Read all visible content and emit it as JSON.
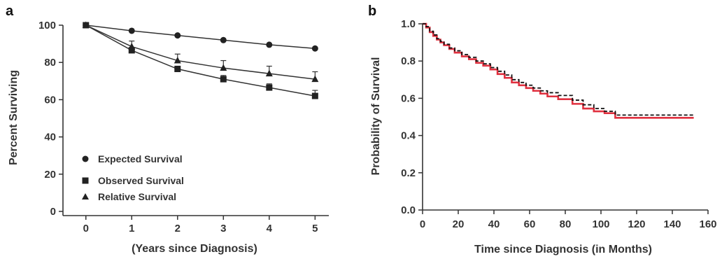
{
  "chart_data": [
    {
      "panel_label": "a",
      "type": "line",
      "xlabel": "(Years since Diagnosis)",
      "ylabel": "Percent Surviving",
      "x": [
        0,
        1,
        2,
        3,
        4,
        5
      ],
      "xlim": [
        -0.5,
        5.3
      ],
      "ylim": [
        0,
        100
      ],
      "xticks": [
        0,
        1,
        2,
        3,
        4,
        5
      ],
      "yticks": [
        0,
        20,
        40,
        60,
        80,
        100
      ],
      "grid": false,
      "legend_position": "bottom-left",
      "series": [
        {
          "name": "Expected Survival",
          "marker": "circle",
          "values": [
            100,
            97,
            94.5,
            92,
            89.5,
            87.5
          ],
          "err": [
            0,
            0,
            0,
            0,
            0,
            0
          ]
        },
        {
          "name": "Observed Survival",
          "marker": "square",
          "values": [
            100,
            86.5,
            76.5,
            71,
            66.5,
            62
          ],
          "err": [
            0,
            1.5,
            1.5,
            2,
            2,
            3
          ]
        },
        {
          "name": "Relative Survival",
          "marker": "triangle",
          "values": [
            100,
            88.5,
            81,
            77,
            74,
            71
          ],
          "err": [
            0,
            3,
            3.5,
            4,
            4,
            4
          ]
        }
      ],
      "colors": {
        "line": "#333333"
      }
    },
    {
      "panel_label": "b",
      "type": "line",
      "xlabel": "Time since Diagnosis (in Months)",
      "ylabel": "Probability of Survival",
      "xlim": [
        0,
        160
      ],
      "ylim": [
        0,
        1
      ],
      "xticks": [
        0,
        20,
        40,
        60,
        80,
        100,
        120,
        140,
        160
      ],
      "yticks": [
        "0.0",
        "0.2",
        "0.4",
        "0.6",
        "0.8",
        "1.0"
      ],
      "grid": false,
      "series": [
        {
          "style": "step",
          "color": "#e0303f",
          "x": [
            0,
            2,
            4,
            6,
            8,
            10,
            12,
            15,
            18,
            22,
            26,
            30,
            34,
            38,
            42,
            46,
            50,
            54,
            58,
            62,
            66,
            70,
            76,
            84,
            90,
            96,
            102,
            108,
            152
          ],
          "values": [
            1.0,
            0.98,
            0.955,
            0.935,
            0.915,
            0.9,
            0.885,
            0.865,
            0.845,
            0.825,
            0.81,
            0.79,
            0.775,
            0.755,
            0.73,
            0.71,
            0.685,
            0.67,
            0.655,
            0.64,
            0.625,
            0.61,
            0.595,
            0.57,
            0.545,
            0.53,
            0.52,
            0.495,
            0.495
          ]
        },
        {
          "style": "dashed-step",
          "color": "#111111",
          "x": [
            0,
            2,
            4,
            6,
            8,
            10,
            12,
            15,
            18,
            22,
            26,
            30,
            34,
            38,
            42,
            46,
            50,
            54,
            58,
            62,
            66,
            70,
            76,
            84,
            90,
            96,
            102,
            108,
            152
          ],
          "values": [
            1.0,
            0.985,
            0.96,
            0.94,
            0.92,
            0.905,
            0.89,
            0.87,
            0.855,
            0.835,
            0.82,
            0.8,
            0.785,
            0.765,
            0.745,
            0.725,
            0.7,
            0.685,
            0.67,
            0.655,
            0.64,
            0.63,
            0.615,
            0.59,
            0.565,
            0.545,
            0.53,
            0.51,
            0.51
          ]
        }
      ]
    }
  ]
}
